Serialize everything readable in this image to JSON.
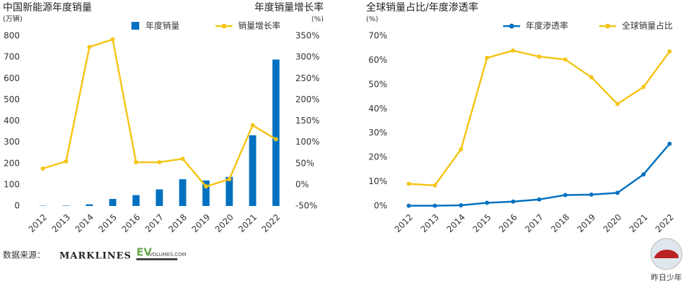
{
  "chart_data": [
    {
      "type": "bar",
      "title": "中国新能源年度销量",
      "ylabel": "(万辆)",
      "y2title": "年度销量增长率",
      "y2label": "(%)",
      "categories": [
        "2012",
        "2013",
        "2014",
        "2015",
        "2016",
        "2017",
        "2018",
        "2019",
        "2020",
        "2021",
        "2022"
      ],
      "series": [
        {
          "name": "年度销量",
          "type": "bar",
          "color": "#0070c0",
          "values": [
            1.3,
            1.8,
            7.5,
            33,
            51,
            78,
            126,
            120,
            137,
            333,
            689
          ]
        },
        {
          "name": "销量增长率",
          "type": "line",
          "axis": "y2",
          "color": "#f5c518",
          "values": [
            38,
            55,
            324,
            342,
            53,
            53,
            61,
            -4,
            13,
            140,
            107
          ]
        }
      ],
      "ylim": [
        0,
        800
      ],
      "yticks": [
        0,
        100,
        200,
        300,
        400,
        500,
        600,
        700,
        800
      ],
      "y2lim": [
        -50,
        350
      ],
      "y2ticks": [
        {
          "value": -50,
          "label": "-50%"
        },
        {
          "value": 0,
          "label": "0%"
        },
        {
          "value": 50,
          "label": "50%"
        },
        {
          "value": 100,
          "label": "100%"
        },
        {
          "value": 150,
          "label": "150%"
        },
        {
          "value": 200,
          "label": "200%"
        },
        {
          "value": 250,
          "label": "250%"
        },
        {
          "value": 300,
          "label": "300%"
        },
        {
          "value": 350,
          "label": "350%"
        }
      ],
      "grid": false
    },
    {
      "type": "line",
      "title": "全球销量占比/年度渗透率",
      "ylabel": "(%)",
      "categories": [
        "2012",
        "2013",
        "2014",
        "2015",
        "2016",
        "2017",
        "2018",
        "2019",
        "2020",
        "2021",
        "2022"
      ],
      "series": [
        {
          "name": "年度渗透率",
          "color": "#0070c0",
          "values": [
            0.1,
            0.1,
            0.3,
            1.3,
            1.8,
            2.7,
            4.5,
            4.7,
            5.4,
            13,
            25.6
          ]
        },
        {
          "name": "全球销量占比",
          "color": "#f5c518",
          "values": [
            9.1,
            8.5,
            23.3,
            61,
            64,
            61.5,
            60.3,
            53,
            42,
            49,
            63.6
          ]
        }
      ],
      "ylim": [
        0,
        70
      ],
      "yticks": [
        {
          "value": 0,
          "label": "0%"
        },
        {
          "value": 10,
          "label": "10%"
        },
        {
          "value": 20,
          "label": "20%"
        },
        {
          "value": 30,
          "label": "30%"
        },
        {
          "value": 40,
          "label": "40%"
        },
        {
          "value": 50,
          "label": "50%"
        },
        {
          "value": 60,
          "label": "60%"
        },
        {
          "value": 70,
          "label": "70%"
        }
      ],
      "grid": false
    }
  ],
  "footer": {
    "source_label": "数据来源：",
    "logos": [
      "MARKLINES",
      "EV",
      "VOLUMES.COM"
    ]
  },
  "watermark": "昨日少年"
}
